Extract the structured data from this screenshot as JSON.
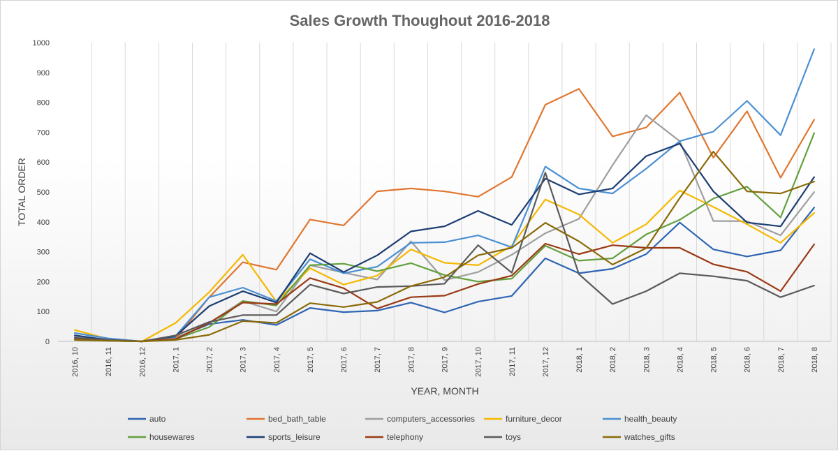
{
  "chart_data": {
    "type": "line",
    "title": "Sales Growth Thoughout 2016-2018",
    "xlabel": "YEAR, MONTH",
    "ylabel": "TOTAL ORDER",
    "ylim": [
      0,
      1000
    ],
    "yticks": [
      0,
      100,
      200,
      300,
      400,
      500,
      600,
      700,
      800,
      900,
      1000
    ],
    "grid": "vertical",
    "legend_position": "bottom",
    "categories": [
      "2016, 10",
      "2016, 11",
      "2016, 12",
      "2017, 1",
      "2017, 2",
      "2017, 3",
      "2017, 4",
      "2017, 5",
      "2017, 6",
      "2017, 7",
      "2017, 8",
      "2017, 9",
      "2017, 10",
      "2017, 11",
      "2017, 12",
      "2018, 1",
      "2018, 2",
      "2018, 3",
      "2018, 4",
      "2018, 5",
      "2018, 6",
      "2018, 7",
      "2018, 8"
    ],
    "series": [
      {
        "name": "auto",
        "color": "#2e64b4",
        "values": [
          12,
          2,
          0,
          12,
          58,
          72,
          55,
          112,
          98,
          103,
          130,
          97,
          133,
          152,
          278,
          228,
          243,
          292,
          398,
          308,
          284,
          305,
          448
        ]
      },
      {
        "name": "bed_bath_table",
        "color": "#e07630",
        "values": [
          10,
          3,
          0,
          8,
          148,
          265,
          240,
          408,
          388,
          502,
          512,
          502,
          484,
          550,
          792,
          845,
          686,
          716,
          833,
          615,
          770,
          548,
          742
        ]
      },
      {
        "name": "computers_accessories",
        "color": "#9e9e9e",
        "values": [
          15,
          5,
          0,
          10,
          62,
          135,
          100,
          255,
          230,
          207,
          335,
          205,
          232,
          290,
          362,
          410,
          590,
          757,
          670,
          403,
          402,
          355,
          500
        ]
      },
      {
        "name": "furniture_decor",
        "color": "#f5b800",
        "values": [
          38,
          8,
          0,
          62,
          165,
          290,
          133,
          245,
          190,
          220,
          308,
          263,
          255,
          320,
          475,
          425,
          330,
          392,
          505,
          450,
          392,
          330,
          430
        ]
      },
      {
        "name": "health_beauty",
        "color": "#4a90d2",
        "values": [
          28,
          10,
          0,
          18,
          148,
          180,
          135,
          275,
          228,
          250,
          330,
          332,
          355,
          315,
          585,
          512,
          495,
          578,
          670,
          702,
          805,
          690,
          978
        ]
      },
      {
        "name": "housewares",
        "color": "#63a03e",
        "values": [
          5,
          2,
          0,
          8,
          48,
          135,
          120,
          255,
          260,
          235,
          262,
          222,
          200,
          210,
          320,
          270,
          278,
          358,
          407,
          478,
          518,
          415,
          697
        ]
      },
      {
        "name": "sports_leisure",
        "color": "#1d3d73",
        "values": [
          20,
          5,
          0,
          18,
          118,
          168,
          130,
          295,
          232,
          288,
          368,
          385,
          437,
          390,
          545,
          492,
          512,
          620,
          662,
          502,
          398,
          385,
          550
        ]
      },
      {
        "name": "telephony",
        "color": "#9a3a14",
        "values": [
          10,
          3,
          0,
          8,
          62,
          130,
          125,
          212,
          178,
          110,
          148,
          153,
          192,
          220,
          327,
          292,
          322,
          313,
          313,
          258,
          233,
          168,
          325
        ]
      },
      {
        "name": "toys",
        "color": "#5a5a5a",
        "values": [
          12,
          5,
          0,
          20,
          65,
          88,
          88,
          190,
          160,
          182,
          185,
          193,
          322,
          230,
          565,
          225,
          125,
          168,
          228,
          218,
          203,
          148,
          187
        ]
      },
      {
        "name": "watches_gifts",
        "color": "#8a6a08",
        "values": [
          5,
          2,
          0,
          5,
          22,
          68,
          62,
          128,
          115,
          132,
          185,
          215,
          288,
          313,
          397,
          335,
          257,
          312,
          480,
          635,
          502,
          495,
          535
        ]
      }
    ]
  }
}
